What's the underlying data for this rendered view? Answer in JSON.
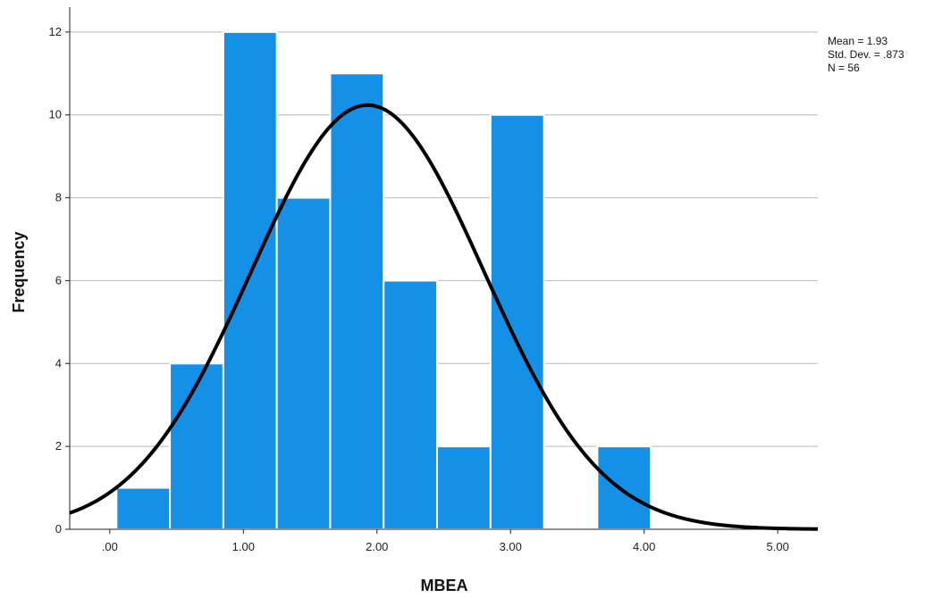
{
  "chart_data": {
    "type": "bar",
    "subtype": "histogram",
    "xlabel": "MBEA",
    "ylabel": "Frequency",
    "xlim": [
      -0.3,
      5.3
    ],
    "ylim": [
      0,
      12.6
    ],
    "x_ticks": [
      {
        "value": 0,
        "label": ".00"
      },
      {
        "value": 1,
        "label": "1.00"
      },
      {
        "value": 2,
        "label": "2.00"
      },
      {
        "value": 3,
        "label": "3.00"
      },
      {
        "value": 4,
        "label": "4.00"
      },
      {
        "value": 5,
        "label": "5.00"
      }
    ],
    "y_ticks": [
      0,
      2,
      4,
      6,
      8,
      10,
      12
    ],
    "grid": "horizontal",
    "bin_width": 0.4,
    "bins": [
      {
        "x0": 0.05,
        "x1": 0.45,
        "value": 1
      },
      {
        "x0": 0.45,
        "x1": 0.85,
        "value": 4
      },
      {
        "x0": 0.85,
        "x1": 1.25,
        "value": 12
      },
      {
        "x0": 1.25,
        "x1": 1.65,
        "value": 8
      },
      {
        "x0": 1.65,
        "x1": 2.05,
        "value": 11
      },
      {
        "x0": 2.05,
        "x1": 2.45,
        "value": 6
      },
      {
        "x0": 2.45,
        "x1": 2.85,
        "value": 2
      },
      {
        "x0": 2.85,
        "x1": 3.25,
        "value": 10
      },
      {
        "x0": 3.25,
        "x1": 3.65,
        "value": 0
      },
      {
        "x0": 3.65,
        "x1": 4.05,
        "value": 2
      }
    ],
    "normal_curve": {
      "mean": 1.93,
      "std": 0.873,
      "n": 56
    },
    "stats_labels": [
      "Mean = 1.93",
      "Std. Dev. = .873",
      "N = 56"
    ],
    "stats_position": "top-right",
    "colors": {
      "bar": "#1490e6",
      "bar_edge": "#ffffff",
      "curve": "#000000",
      "grid": "#b8b8b8"
    }
  }
}
